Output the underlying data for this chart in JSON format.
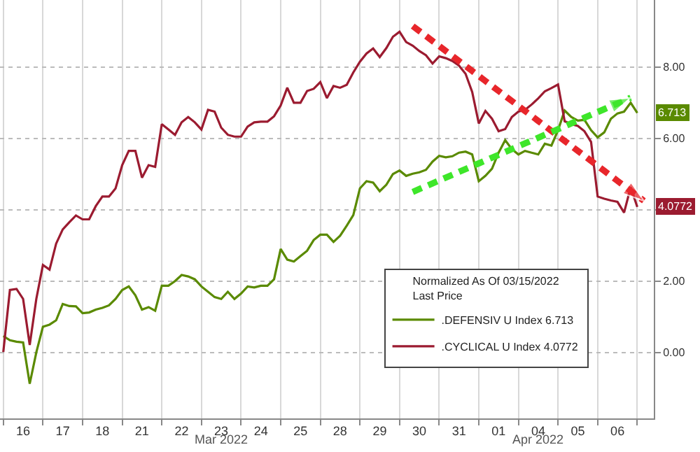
{
  "chart_data": {
    "type": "line",
    "legend_title": "Normalized As Of 03/15/2022\nLast Price",
    "categories": [
      null,
      null,
      null,
      "16",
      null,
      null,
      null,
      null,
      null,
      "17",
      null,
      null,
      null,
      null,
      null,
      "18",
      null,
      null,
      null,
      null,
      null,
      "21",
      null,
      null,
      null,
      null,
      null,
      "22",
      null,
      null,
      null,
      null,
      null,
      "23",
      null,
      null,
      null,
      null,
      null,
      "24",
      null,
      null,
      null,
      null,
      null,
      "25",
      null,
      null,
      null,
      null,
      null,
      "28",
      null,
      null,
      null,
      null,
      null,
      "29",
      null,
      null,
      null,
      null,
      null,
      "30",
      null,
      null,
      null,
      null,
      null,
      "31",
      null,
      null,
      null,
      null,
      null,
      "01",
      null,
      null,
      null,
      null,
      null,
      "04",
      null,
      null,
      null,
      null,
      null,
      "05",
      null,
      null,
      null,
      null,
      null,
      "06",
      null,
      null,
      null,
      null,
      null
    ],
    "ylim": [
      -1.85,
      9.88
    ],
    "yticks": [
      {
        "value": 0,
        "label": "0.00"
      },
      {
        "value": 2,
        "label": "2.00"
      },
      {
        "value": 4,
        "label": null
      },
      {
        "value": 6,
        "label": "6.00"
      },
      {
        "value": 8,
        "label": "8.00"
      }
    ],
    "grid": true,
    "legend": "bottom right",
    "annotations": [
      "Mar 2022",
      "Apr 2022"
    ],
    "series": [
      {
        "name": ".DEFENSIV U Index 6.713",
        "color": "#5a8a00",
        "values": [
          0.46,
          0.34,
          0.3,
          0.28,
          -0.88,
          0.0,
          0.72,
          0.78,
          0.9,
          1.36,
          1.3,
          1.29,
          1.1,
          1.12,
          1.2,
          1.25,
          1.32,
          1.5,
          1.75,
          1.85,
          1.6,
          1.2,
          1.27,
          1.17,
          1.87,
          1.87,
          2.0,
          2.17,
          2.13,
          2.05,
          1.85,
          1.7,
          1.55,
          1.5,
          1.7,
          1.5,
          1.65,
          1.85,
          1.82,
          1.87,
          1.87,
          2.05,
          2.9,
          2.6,
          2.55,
          2.7,
          2.85,
          3.15,
          3.3,
          3.3,
          3.1,
          3.27,
          3.55,
          3.85,
          4.6,
          4.8,
          4.76,
          4.52,
          4.7,
          5.0,
          5.1,
          4.95,
          5.01,
          5.05,
          5.12,
          5.35,
          5.51,
          5.47,
          5.5,
          5.6,
          5.63,
          5.55,
          4.8,
          4.95,
          5.15,
          5.6,
          5.95,
          5.7,
          5.55,
          5.65,
          5.6,
          5.55,
          5.85,
          5.8,
          6.23,
          6.78,
          6.6,
          6.5,
          6.52,
          6.23,
          6.03,
          6.17,
          6.55,
          6.7,
          6.75,
          7.0,
          6.713,
          null,
          null
        ],
        "value_labels": [
          null,
          null,
          null,
          null,
          null,
          null,
          null,
          null,
          null,
          null,
          null,
          null,
          null,
          null,
          null,
          null,
          null,
          null,
          null,
          null,
          null,
          null,
          null,
          null,
          null,
          null,
          null,
          null,
          null,
          null,
          null,
          null,
          null,
          null,
          null,
          null,
          null,
          null,
          null,
          null,
          null,
          null,
          null,
          null,
          null,
          null,
          null,
          null,
          null,
          null,
          null,
          null,
          null,
          null,
          null,
          null,
          null,
          null,
          null,
          null,
          null,
          null,
          null,
          null,
          null,
          null,
          null,
          null,
          null,
          null,
          null,
          null,
          null,
          null,
          null,
          null,
          null,
          null,
          null,
          null,
          null,
          null,
          null,
          null,
          null,
          null,
          null,
          null,
          null,
          null,
          null,
          null,
          null,
          null,
          null,
          null,
          "6.713",
          null,
          null
        ]
      },
      {
        "name": ".CYCLICAL U Index 4.0772",
        "color": "#9b1b30",
        "values": [
          0.01,
          1.75,
          1.78,
          1.5,
          0.21,
          1.5,
          2.45,
          2.32,
          3.05,
          3.45,
          3.65,
          3.84,
          3.73,
          3.73,
          4.1,
          4.37,
          4.37,
          4.6,
          5.25,
          5.65,
          5.65,
          4.9,
          5.25,
          5.2,
          6.4,
          6.25,
          6.1,
          6.45,
          6.6,
          6.45,
          6.25,
          6.8,
          6.75,
          6.3,
          6.1,
          6.05,
          6.05,
          6.33,
          6.45,
          6.47,
          6.47,
          6.62,
          6.92,
          7.42,
          7.0,
          7.0,
          7.33,
          7.39,
          7.58,
          7.13,
          7.47,
          7.42,
          7.5,
          7.85,
          8.15,
          8.38,
          8.52,
          8.28,
          8.53,
          8.85,
          8.99,
          8.7,
          8.6,
          8.45,
          8.33,
          8.1,
          8.3,
          8.25,
          8.17,
          8.04,
          7.81,
          7.3,
          6.42,
          6.77,
          6.55,
          6.2,
          6.26,
          6.6,
          6.75,
          6.8,
          6.95,
          7.12,
          7.32,
          7.41,
          7.51,
          6.48,
          6.4,
          6.35,
          6.2,
          5.9,
          4.37,
          4.31,
          4.26,
          4.22,
          3.92,
          4.63,
          4.0772,
          null,
          null
        ],
        "value_labels": [
          null,
          null,
          null,
          null,
          null,
          null,
          null,
          null,
          null,
          null,
          null,
          null,
          null,
          null,
          null,
          null,
          null,
          null,
          null,
          null,
          null,
          null,
          null,
          null,
          null,
          null,
          null,
          null,
          null,
          null,
          null,
          null,
          null,
          null,
          null,
          null,
          null,
          null,
          null,
          null,
          null,
          null,
          null,
          null,
          null,
          null,
          null,
          null,
          null,
          null,
          null,
          null,
          null,
          null,
          null,
          null,
          null,
          null,
          null,
          null,
          null,
          null,
          null,
          null,
          null,
          null,
          null,
          null,
          null,
          null,
          null,
          null,
          null,
          null,
          null,
          null,
          null,
          null,
          null,
          null,
          null,
          null,
          null,
          null,
          null,
          null,
          null,
          null,
          null,
          null,
          null,
          null,
          null,
          null,
          null,
          null,
          "4.0772",
          null,
          null
        ]
      },
      {
        "color": "#e8262b",
        "line_style": "dashed",
        "values": [
          null,
          null,
          null,
          null,
          null,
          null,
          null,
          null,
          null,
          null,
          null,
          null,
          null,
          null,
          null,
          null,
          null,
          null,
          null,
          null,
          null,
          null,
          null,
          null,
          null,
          null,
          null,
          null,
          null,
          null,
          null,
          null,
          null,
          null,
          null,
          null,
          null,
          null,
          null,
          null,
          null,
          null,
          null,
          null,
          null,
          null,
          null,
          null,
          null,
          null,
          null,
          null,
          null,
          null,
          null,
          null,
          null,
          null,
          null,
          null,
          null,
          null,
          9.15,
          9.01,
          8.87,
          8.73,
          8.59,
          8.45,
          8.31,
          8.17,
          8.03,
          7.89,
          7.75,
          7.61,
          7.47,
          7.33,
          7.19,
          7.05,
          6.91,
          6.77,
          6.63,
          6.49,
          6.35,
          6.21,
          6.07,
          5.93,
          5.79,
          5.65,
          5.51,
          5.37,
          5.23,
          5.09,
          4.95,
          4.81,
          4.67,
          4.53,
          4.39,
          4.25,
          null
        ]
      },
      {
        "color": "#3ee62a",
        "line_style": "dashed",
        "values": [
          null,
          null,
          null,
          null,
          null,
          null,
          null,
          null,
          null,
          null,
          null,
          null,
          null,
          null,
          null,
          null,
          null,
          null,
          null,
          null,
          null,
          null,
          null,
          null,
          null,
          null,
          null,
          null,
          null,
          null,
          null,
          null,
          null,
          null,
          null,
          null,
          null,
          null,
          null,
          null,
          null,
          null,
          null,
          null,
          null,
          null,
          null,
          null,
          null,
          null,
          null,
          null,
          null,
          null,
          null,
          null,
          null,
          null,
          null,
          null,
          null,
          null,
          4.5,
          4.58,
          4.66,
          4.74,
          4.82,
          4.9,
          4.98,
          5.06,
          5.14,
          5.22,
          5.3,
          5.38,
          5.46,
          5.54,
          5.62,
          5.7,
          5.78,
          5.86,
          5.94,
          6.02,
          6.1,
          6.18,
          6.26,
          6.34,
          6.42,
          6.5,
          6.58,
          6.66,
          6.74,
          6.82,
          6.9,
          6.98,
          7.06,
          7.14,
          null,
          null,
          null
        ]
      }
    ]
  }
}
